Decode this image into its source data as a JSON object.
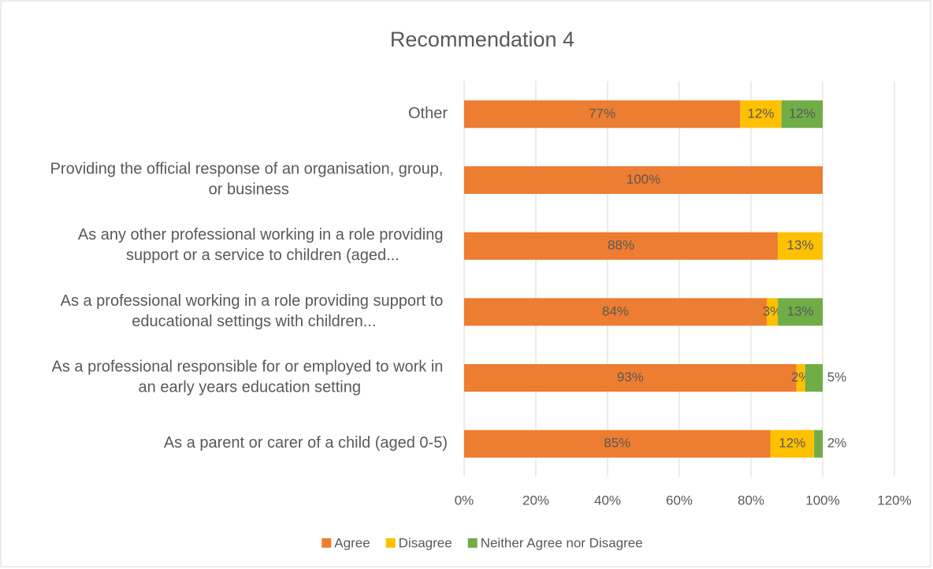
{
  "chart_data": {
    "type": "stacked_bar_horizontal",
    "title": "Recommendation 4",
    "categories": [
      "Other",
      "Providing the official response of an organisation, group, or business",
      "As any other professional working in a role providing support or a service to children (aged...",
      "As a professional working in a role providing support to educational settings with children...",
      "As a professional responsible for or employed to work in an early years education setting",
      "As a parent or carer of a child (aged 0-5)"
    ],
    "series": [
      {
        "name": "Agree",
        "color": "#ED7D31",
        "values": [
          77,
          100,
          87.5,
          84.4,
          92.7,
          85.4
        ],
        "value_labels": [
          "77%",
          "100%",
          "88%",
          "84%",
          "93%",
          "85%"
        ]
      },
      {
        "name": "Disagree",
        "color": "#FFC000",
        "values": [
          11.5,
          null,
          12.5,
          3.1,
          2.4,
          12.2
        ],
        "value_labels": [
          "12%",
          null,
          "13%",
          "3%",
          "2%",
          "12%"
        ]
      },
      {
        "name": "Neither Agree nor Disagree",
        "color": "#70AD47",
        "values": [
          11.5,
          null,
          null,
          12.5,
          4.9,
          2.4
        ],
        "value_labels": [
          "12%",
          null,
          null,
          "13%",
          "5%",
          "2%"
        ]
      }
    ],
    "xlim": [
      0,
      120
    ],
    "xticks": [
      {
        "value": 0,
        "label": "0%"
      },
      {
        "value": 20,
        "label": "20%"
      },
      {
        "value": 40,
        "label": "40%"
      },
      {
        "value": 60,
        "label": "60%"
      },
      {
        "value": 80,
        "label": "80%"
      },
      {
        "value": 100,
        "label": "100%"
      },
      {
        "value": 120,
        "label": "120%"
      }
    ],
    "grid": true,
    "legend": "bottom"
  }
}
